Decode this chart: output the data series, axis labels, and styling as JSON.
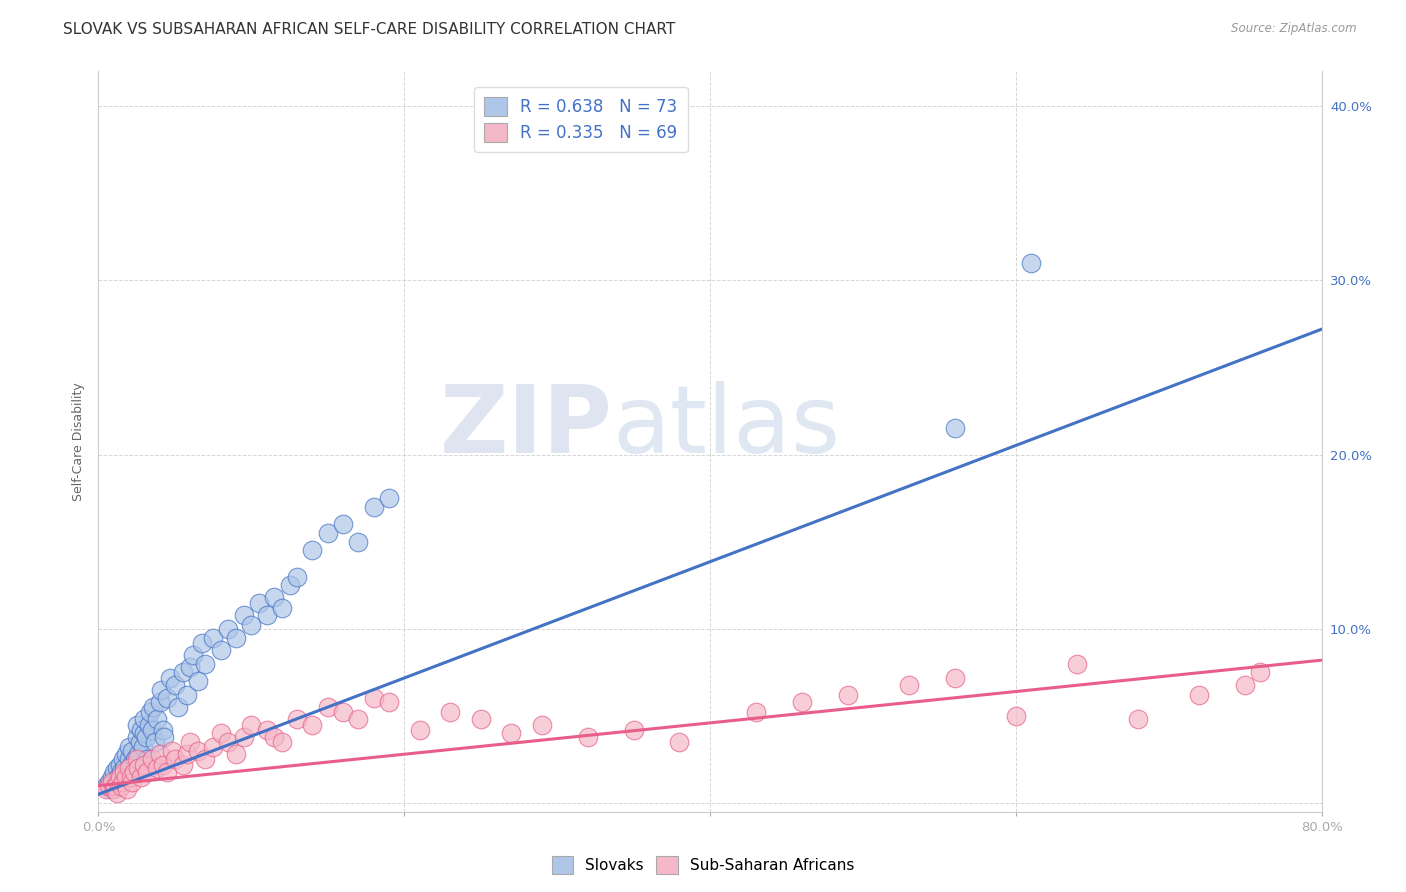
{
  "title": "SLOVAK VS SUBSAHARAN AFRICAN SELF-CARE DISABILITY CORRELATION CHART",
  "source": "Source: ZipAtlas.com",
  "ylabel": "Self-Care Disability",
  "xlim": [
    0.0,
    0.8
  ],
  "ylim": [
    -0.005,
    0.42
  ],
  "xticks": [
    0.0,
    0.2,
    0.4,
    0.6,
    0.8
  ],
  "xtick_labels": [
    "0.0%",
    "",
    "",
    "",
    "80.0%"
  ],
  "yticks": [
    0.0,
    0.1,
    0.2,
    0.3,
    0.4
  ],
  "ytick_labels_left": [
    "",
    "",
    "",
    "",
    ""
  ],
  "ytick_labels_right": [
    "",
    "10.0%",
    "20.0%",
    "30.0%",
    "40.0%"
  ],
  "blue_color": "#4472c4",
  "pink_color": "#e85d8a",
  "blue_fill": "#aec6e8",
  "pink_fill": "#f4b8c8",
  "blue_trend_x": [
    0.0,
    0.8
  ],
  "blue_trend_y": [
    0.005,
    0.272
  ],
  "pink_trend_x": [
    0.0,
    0.8
  ],
  "pink_trend_y": [
    0.01,
    0.082
  ],
  "blue_scatter_x": [
    0.005,
    0.007,
    0.008,
    0.009,
    0.01,
    0.01,
    0.011,
    0.012,
    0.013,
    0.014,
    0.015,
    0.015,
    0.016,
    0.017,
    0.018,
    0.019,
    0.02,
    0.02,
    0.021,
    0.022,
    0.023,
    0.024,
    0.025,
    0.025,
    0.026,
    0.027,
    0.028,
    0.029,
    0.03,
    0.03,
    0.031,
    0.032,
    0.033,
    0.034,
    0.035,
    0.036,
    0.037,
    0.038,
    0.04,
    0.041,
    0.042,
    0.043,
    0.045,
    0.047,
    0.05,
    0.052,
    0.055,
    0.058,
    0.06,
    0.062,
    0.065,
    0.068,
    0.07,
    0.075,
    0.08,
    0.085,
    0.09,
    0.095,
    0.1,
    0.105,
    0.11,
    0.115,
    0.12,
    0.125,
    0.13,
    0.14,
    0.15,
    0.16,
    0.17,
    0.18,
    0.19,
    0.56,
    0.61
  ],
  "blue_scatter_y": [
    0.01,
    0.012,
    0.008,
    0.015,
    0.01,
    0.018,
    0.012,
    0.02,
    0.015,
    0.022,
    0.012,
    0.018,
    0.025,
    0.02,
    0.028,
    0.015,
    0.025,
    0.032,
    0.022,
    0.03,
    0.018,
    0.025,
    0.038,
    0.045,
    0.028,
    0.035,
    0.042,
    0.032,
    0.04,
    0.048,
    0.038,
    0.025,
    0.045,
    0.052,
    0.042,
    0.055,
    0.035,
    0.048,
    0.058,
    0.065,
    0.042,
    0.038,
    0.06,
    0.072,
    0.068,
    0.055,
    0.075,
    0.062,
    0.078,
    0.085,
    0.07,
    0.092,
    0.08,
    0.095,
    0.088,
    0.1,
    0.095,
    0.108,
    0.102,
    0.115,
    0.108,
    0.118,
    0.112,
    0.125,
    0.13,
    0.145,
    0.155,
    0.16,
    0.15,
    0.17,
    0.175,
    0.215,
    0.31
  ],
  "pink_scatter_x": [
    0.005,
    0.007,
    0.009,
    0.01,
    0.011,
    0.012,
    0.013,
    0.014,
    0.015,
    0.016,
    0.017,
    0.018,
    0.019,
    0.02,
    0.021,
    0.022,
    0.023,
    0.025,
    0.026,
    0.028,
    0.03,
    0.032,
    0.035,
    0.038,
    0.04,
    0.042,
    0.045,
    0.048,
    0.05,
    0.055,
    0.058,
    0.06,
    0.065,
    0.07,
    0.075,
    0.08,
    0.085,
    0.09,
    0.095,
    0.1,
    0.11,
    0.115,
    0.12,
    0.13,
    0.14,
    0.15,
    0.16,
    0.17,
    0.18,
    0.19,
    0.21,
    0.23,
    0.25,
    0.27,
    0.29,
    0.32,
    0.35,
    0.38,
    0.43,
    0.46,
    0.49,
    0.53,
    0.56,
    0.6,
    0.64,
    0.68,
    0.72,
    0.75,
    0.76
  ],
  "pink_scatter_y": [
    0.008,
    0.01,
    0.012,
    0.008,
    0.01,
    0.006,
    0.012,
    0.015,
    0.01,
    0.012,
    0.018,
    0.015,
    0.008,
    0.02,
    0.015,
    0.012,
    0.018,
    0.025,
    0.02,
    0.015,
    0.022,
    0.018,
    0.025,
    0.02,
    0.028,
    0.022,
    0.018,
    0.03,
    0.025,
    0.022,
    0.028,
    0.035,
    0.03,
    0.025,
    0.032,
    0.04,
    0.035,
    0.028,
    0.038,
    0.045,
    0.042,
    0.038,
    0.035,
    0.048,
    0.045,
    0.055,
    0.052,
    0.048,
    0.06,
    0.058,
    0.042,
    0.052,
    0.048,
    0.04,
    0.045,
    0.038,
    0.042,
    0.035,
    0.052,
    0.058,
    0.062,
    0.068,
    0.072,
    0.05,
    0.08,
    0.048,
    0.062,
    0.068,
    0.075
  ],
  "grid_color": "#cccccc",
  "background_color": "#ffffff",
  "watermark_zip": "ZIP",
  "watermark_atlas": "atlas",
  "title_fontsize": 11,
  "tick_fontsize": 9.5,
  "ylabel_fontsize": 9
}
